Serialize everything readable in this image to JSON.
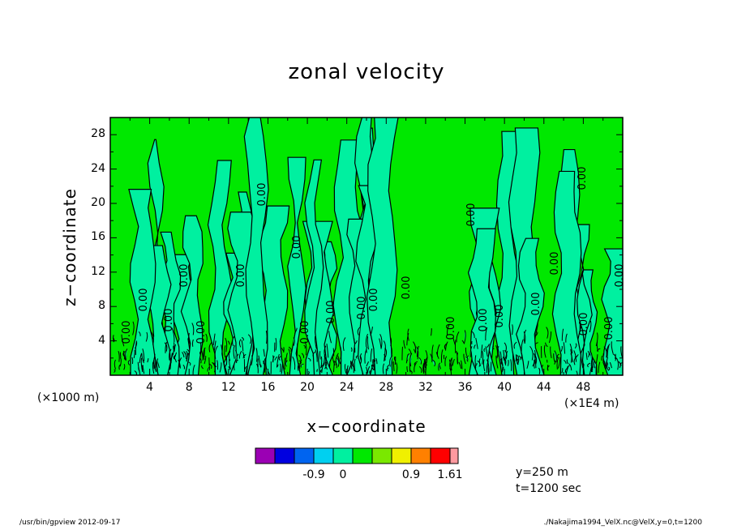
{
  "chart_data": {
    "type": "heatmap",
    "title": "zonal velocity",
    "xlabel": "x−coordinate",
    "ylabel": "z−coordinate",
    "x_unit_left": "(×1000 m)",
    "x_unit_right": "(×1E4 m)",
    "xlim": [
      0,
      52
    ],
    "ylim": [
      0,
      30
    ],
    "x_ticks": [
      4,
      8,
      12,
      16,
      20,
      24,
      28,
      32,
      36,
      40,
      44,
      48
    ],
    "y_ticks": [
      4,
      8,
      12,
      16,
      20,
      24,
      28
    ],
    "contour_label": "0.00",
    "colorbar": {
      "levels": [
        -1.61,
        -1.27,
        -0.9,
        -0.54,
        -0.18,
        0.18,
        0.54,
        0.9,
        1.27,
        1.61
      ],
      "colors": [
        "#9b00b4",
        "#0000e0",
        "#0064f0",
        "#00d0f0",
        "#00f0a0",
        "#00e800",
        "#7ae800",
        "#f0f000",
        "#ff8000",
        "#ff0000",
        "#ff9aa0"
      ],
      "tick_labels": [
        "-0.9",
        "0",
        "0.9",
        "1.61"
      ]
    },
    "background_fill": "#00e800",
    "band_fill": "#00f0a0"
  },
  "info": {
    "y_value": "y=250 m",
    "time": "t=1200 sec"
  },
  "footer": {
    "left": "/usr/bin/gpview  2012-09-17",
    "right": "./Nakajima1994_VelX.nc@VelX,y=0,t=1200"
  }
}
